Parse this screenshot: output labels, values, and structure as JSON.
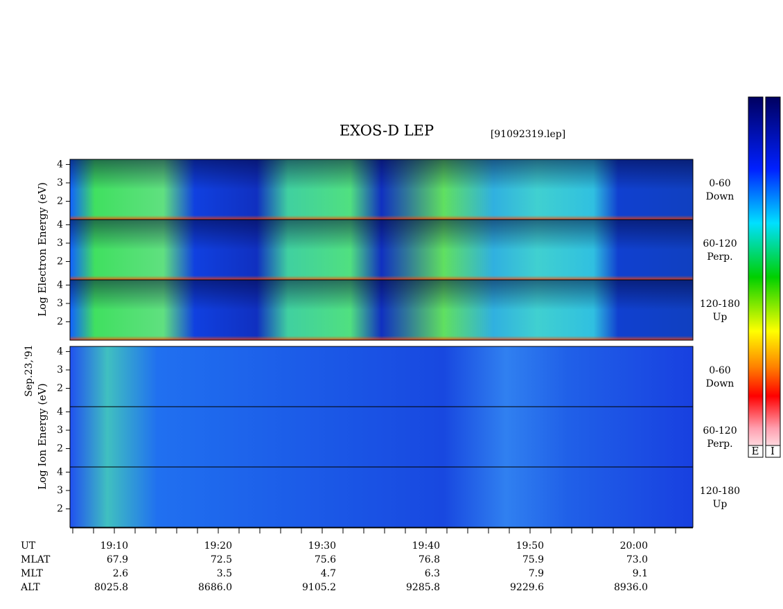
{
  "header": {
    "title": "EXOS-D LEP",
    "file": "[91092319.lep]"
  },
  "date": "Sep.23,'91",
  "energy_axis": {
    "ylim": [
      1,
      4.28
    ],
    "yticks": [
      2,
      3,
      4
    ]
  },
  "electron": {
    "axis_label": "Log Electron Energy (eV)",
    "panels": [
      {
        "angle": "0-60",
        "direction": "Down"
      },
      {
        "angle": "60-120",
        "direction": "Perp."
      },
      {
        "angle": "120-180",
        "direction": "Up"
      }
    ]
  },
  "ion": {
    "axis_label": "Log Ion Energy (eV)",
    "panels": [
      {
        "angle": "0-60",
        "direction": "Down"
      },
      {
        "angle": "60-120",
        "direction": "Perp."
      },
      {
        "angle": "120-180",
        "direction": "Up"
      }
    ]
  },
  "orbit_table": {
    "rows": [
      {
        "label": "UT",
        "values": [
          "19:10",
          "19:20",
          "19:30",
          "19:40",
          "19:50",
          "20:00"
        ]
      },
      {
        "label": "MLAT",
        "values": [
          "67.9",
          "72.5",
          "75.6",
          "76.8",
          "75.9",
          "73.0"
        ]
      },
      {
        "label": "MLT",
        "values": [
          "2.6",
          "3.5",
          "4.7",
          "6.3",
          "7.9",
          "9.1"
        ]
      },
      {
        "label": "ALT",
        "values": [
          "8025.8",
          "8686.0",
          "9105.2",
          "9285.8",
          "9229.6",
          "8936.0"
        ]
      }
    ]
  },
  "colorbar": {
    "labels": [
      "E",
      "I"
    ]
  }
}
